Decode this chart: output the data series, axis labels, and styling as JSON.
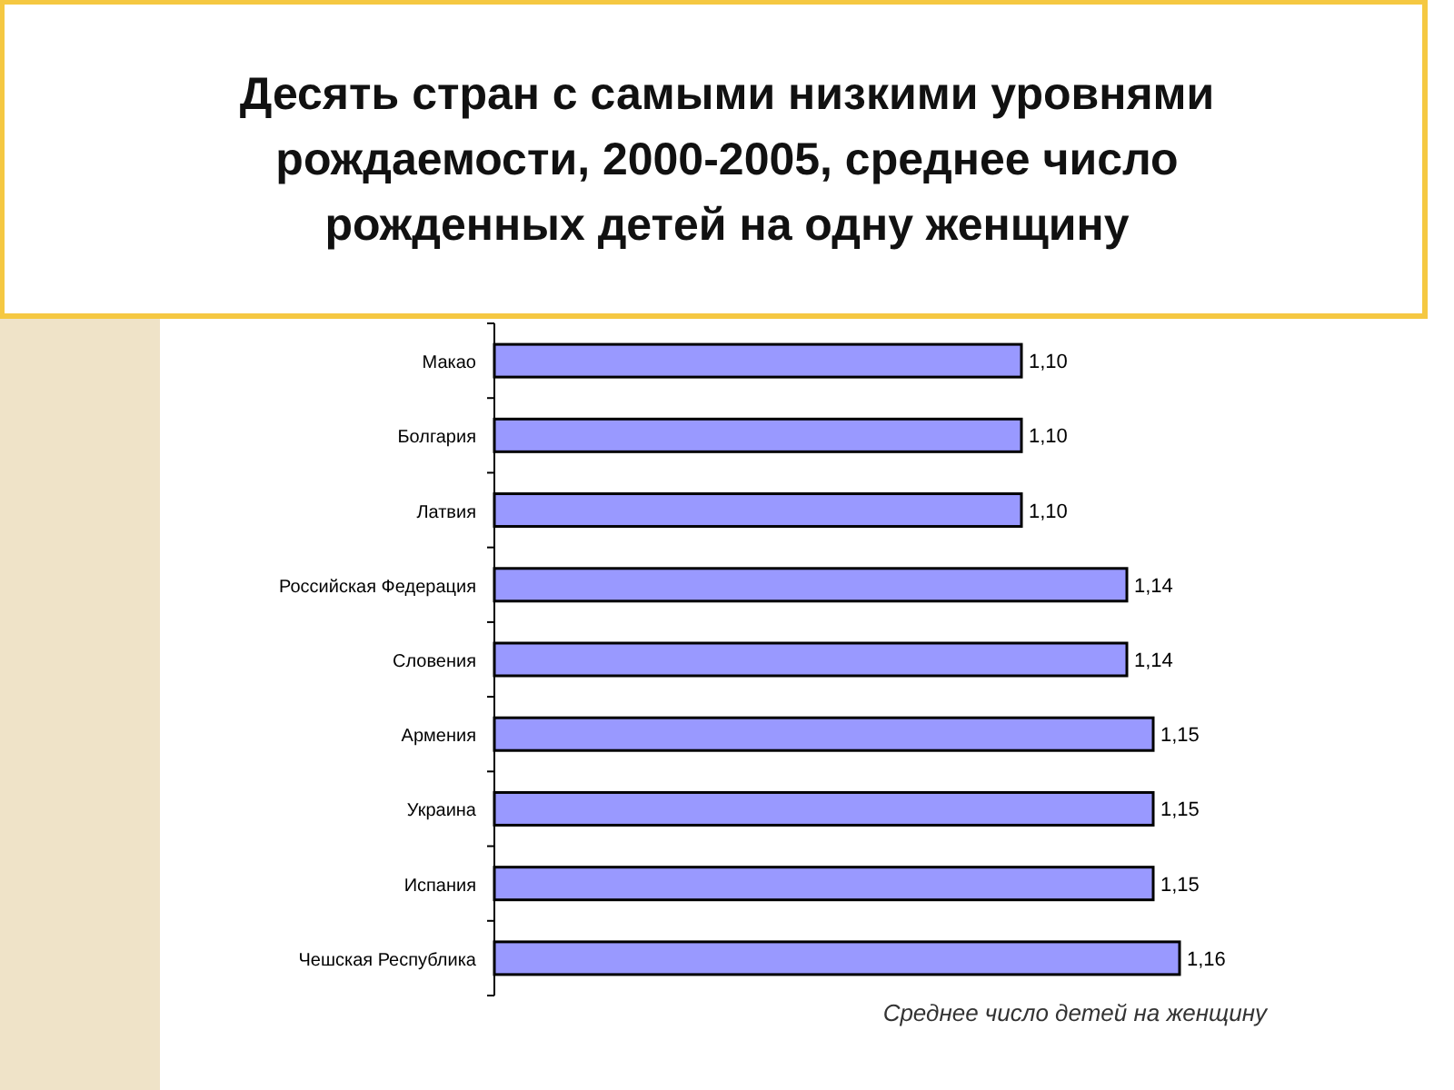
{
  "chart_data": {
    "type": "bar",
    "orientation": "horizontal",
    "title": "Десять стран с самыми низкими уровнями рождаемости, 2000-2005, среднее число рожденных детей на одну женщину",
    "categories": [
      "Макао",
      "Болгария",
      "Латвия",
      "Российская Федерация",
      "Словения",
      "Армения",
      "Украина",
      "Испания",
      "Чешская Республика"
    ],
    "values": [
      1.1,
      1.1,
      1.1,
      1.14,
      1.14,
      1.15,
      1.15,
      1.15,
      1.16
    ],
    "value_labels": [
      "1,10",
      "1,10",
      "1,10",
      "1,14",
      "1,14",
      "1,15",
      "1,15",
      "1,15",
      "1,16"
    ],
    "color": "#9999ff",
    "xlim": [
      0.9,
      1.16
    ],
    "xlabel": "Среднее число детей на женщину",
    "tick_labels": "y"
  }
}
